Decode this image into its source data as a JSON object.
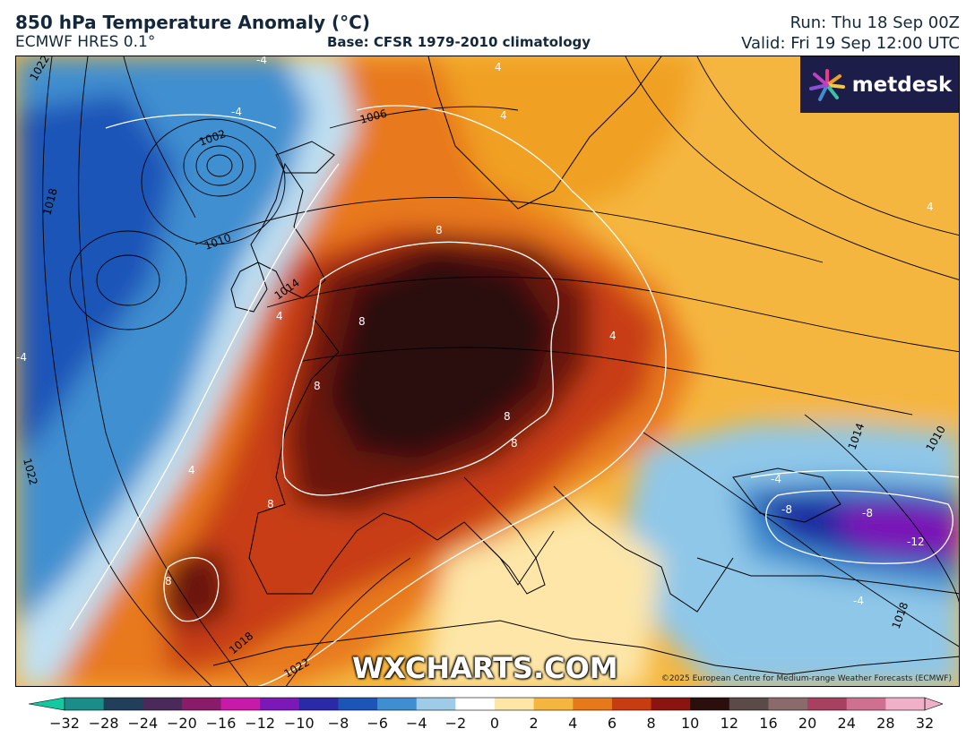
{
  "header": {
    "title": "850 hPa Temperature Anomaly (°C)",
    "model": "ECMWF HRES 0.1°",
    "base": "Base: CFSR 1979-2010 climatology",
    "run": "Run: Thu 18 Sep 00Z",
    "valid": "Valid: Fri 19 Sep 12:00 UTC"
  },
  "branding": {
    "logo_text": "metdesk",
    "watermark": "WXCHARTS.COM",
    "credit": "©2025 European Centre for Medium-range Weather Forecasts (ECMWF)"
  },
  "map": {
    "pressure_labels": [
      "1022",
      "1018",
      "1002",
      "1006",
      "1010",
      "1014",
      "1022",
      "1018",
      "1022",
      "1014",
      "1010",
      "1018"
    ],
    "anomaly_labels": [
      "-4",
      "-4",
      "4",
      "4",
      "4",
      "8",
      "8",
      "8",
      "8",
      "4",
      "-4",
      "-8",
      "-8",
      "-12",
      "-4",
      "4",
      "8",
      "8",
      "8",
      "4",
      "-4"
    ],
    "colors": {
      "extreme_warm": "#2a0f0d",
      "very_warm": "#6a1410",
      "warm": "#c8320f",
      "mild": "#f0a020",
      "slight": "#fdd978",
      "neutral": "#ffffff",
      "cool": "#8fc7e8",
      "cold": "#2f6fbf",
      "very_cold": "#1c2aa0",
      "extreme_cold": "#7a18b8"
    }
  },
  "colorbar": {
    "ticks": [
      "−32",
      "−28",
      "−24",
      "−20",
      "−16",
      "−12",
      "−10",
      "−8",
      "−6",
      "−4",
      "−2",
      "0",
      "2",
      "4",
      "6",
      "8",
      "10",
      "12",
      "16",
      "20",
      "24",
      "28",
      "32"
    ],
    "colors": [
      "#13c9a0",
      "#1a8c8a",
      "#1f3f5a",
      "#4a2a5a",
      "#8a1a6a",
      "#c81aa8",
      "#7a18b8",
      "#2a2aa8",
      "#1c54b8",
      "#3f8fd0",
      "#9ecbe8",
      "#ffffff",
      "#fde6a8",
      "#f5b63f",
      "#e8791a",
      "#c83c12",
      "#8c1410",
      "#2a0f0d",
      "#5a4a48",
      "#8a6a6a",
      "#a84060",
      "#d07090",
      "#f0b0c8"
    ]
  }
}
